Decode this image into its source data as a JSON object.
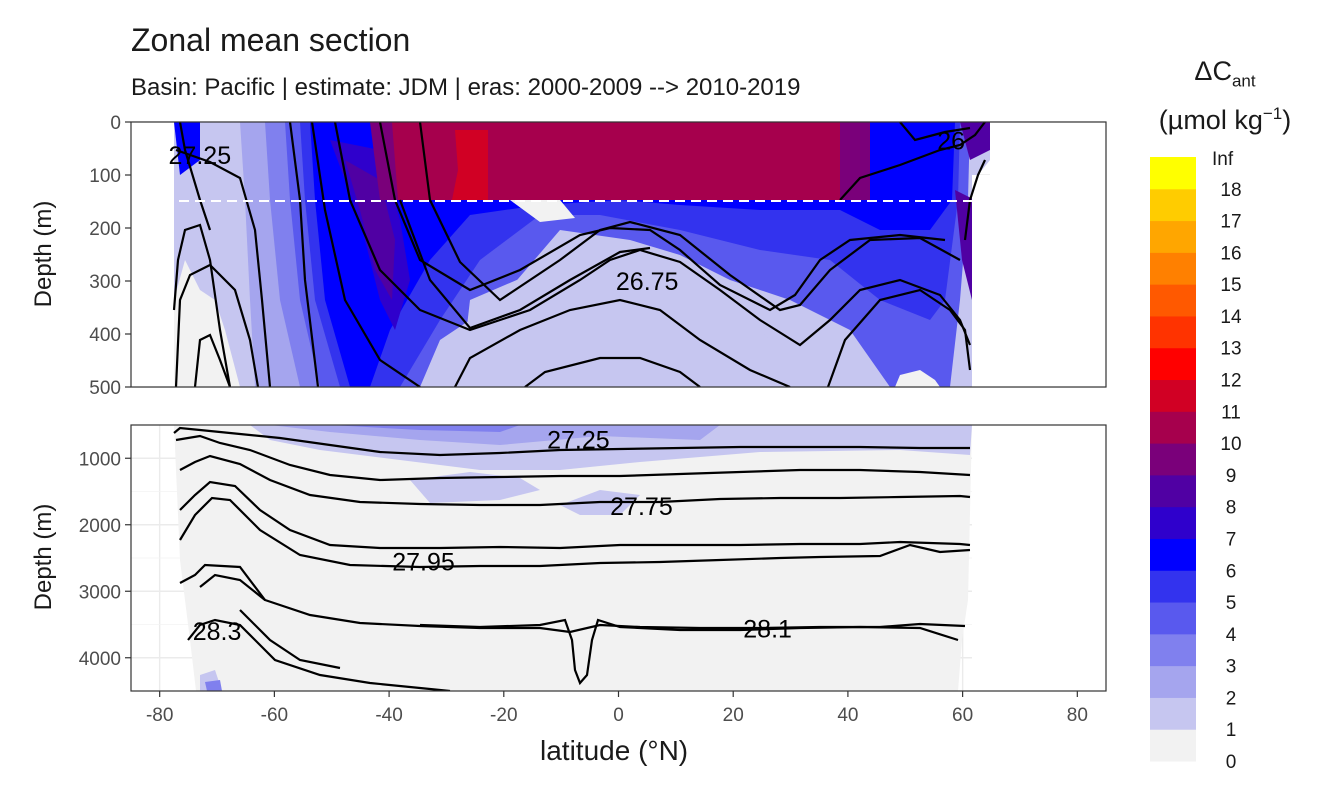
{
  "chart_data": {
    "type": "contour",
    "title": "Zonal mean section",
    "subtitle": "Basin: Pacific | estimate: JDM  | eras: 2000-2009 --> 2010-2019",
    "xlabel": "latitude (°N)",
    "ylabel": "Depth (m)",
    "xlim": [
      -85,
      85
    ],
    "x_ticks": [
      -80,
      -60,
      -40,
      -20,
      0,
      20,
      40,
      60,
      80
    ],
    "x_tick_labels": [
      "-80",
      "-60",
      "-40",
      "-20",
      "0",
      "20",
      "40",
      "60",
      "80"
    ],
    "panels": [
      {
        "name": "upper",
        "ylim": [
          500,
          0
        ],
        "y_ticks": [
          0,
          100,
          200,
          300,
          400,
          500
        ],
        "y_tick_labels": [
          "0",
          "100",
          "200",
          "300",
          "400",
          "500"
        ],
        "dashed_line_depth": 150,
        "contour_labels": [
          {
            "text": "27.25",
            "lat": -73,
            "depth": 62
          },
          {
            "text": "26.75",
            "lat": 5,
            "depth": 300
          },
          {
            "text": "26",
            "lat": 58,
            "depth": 35
          }
        ]
      },
      {
        "name": "lower",
        "ylim": [
          4500,
          500
        ],
        "y_ticks": [
          1000,
          2000,
          3000,
          4000
        ],
        "y_tick_labels": [
          "1000",
          "2000",
          "3000",
          "4000"
        ],
        "contour_labels": [
          {
            "text": "27.25",
            "lat": -7,
            "depth": 720
          },
          {
            "text": "27.75",
            "lat": 4,
            "depth": 1720
          },
          {
            "text": "27.95",
            "lat": -34,
            "depth": 2550
          },
          {
            "text": "28.3",
            "lat": -70,
            "depth": 3600
          },
          {
            "text": "28.1",
            "lat": 26,
            "depth": 3560
          }
        ]
      }
    ],
    "legend": {
      "title_main": "ΔC",
      "title_sub": "ant",
      "unit_main": "(µmol kg",
      "unit_sup": "−1",
      "unit_end": ")",
      "breaks": [
        "0",
        "1",
        "2",
        "3",
        "4",
        "5",
        "6",
        "7",
        "8",
        "9",
        "10",
        "11",
        "12",
        "13",
        "14",
        "15",
        "16",
        "17",
        "18",
        "Inf"
      ],
      "colors": [
        "#f2f2f2",
        "#c6c6f0",
        "#a5a5ee",
        "#8080ee",
        "#5959ee",
        "#3333ee",
        "#0000ff",
        "#2f00cc",
        "#5000a3",
        "#7a007a",
        "#a6004d",
        "#d10024",
        "#ff0000",
        "#ff3300",
        "#ff5900",
        "#ff8000",
        "#ffa600",
        "#ffcc00",
        "#ffff00"
      ]
    }
  }
}
